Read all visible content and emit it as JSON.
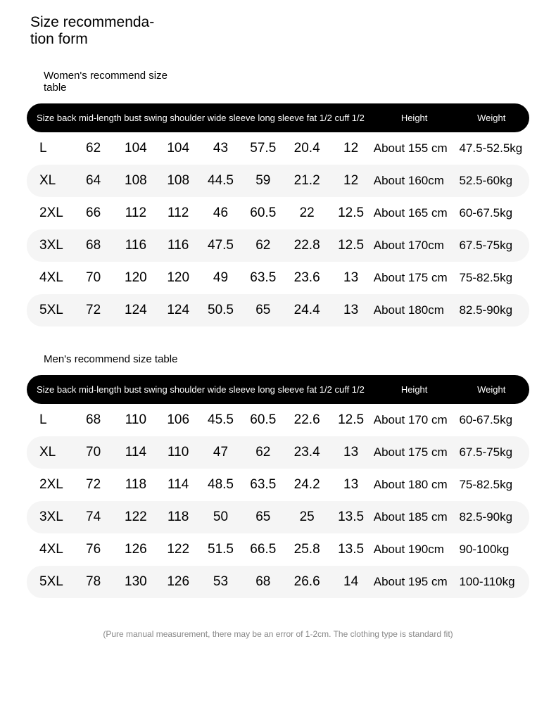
{
  "page_title": "Size recommenda-\ntion form",
  "women_subtitle": "Women's recommend\nsize table",
  "men_subtitle": "Men's recommend size table",
  "footnote": "(Pure manual measurement, there may be an error of 1-2cm. The clothing type is standard fit)",
  "columns_left": "Size back mid-length bust swing shoulder wide sleeve long sleeve fat 1/2 cuff 1/2",
  "col_height": "Height",
  "col_weight": "Weight",
  "colors": {
    "header_bg": "#000000",
    "header_fg": "#ffffff",
    "row_alt_bg": "#f5f5f5",
    "page_bg": "#ffffff",
    "footnote_color": "#888888"
  },
  "typography": {
    "title_fontsize": 21,
    "subtitle_fontsize": 15,
    "header_fontsize": 13,
    "cell_fontsize": 19,
    "rec_fontsize": 17,
    "footnote_fontsize": 12
  },
  "layout": {
    "header_row_radius": 22,
    "data_row_radius": 22
  },
  "women": {
    "rows": [
      {
        "size": "L",
        "back": "62",
        "bust": "104",
        "swing": "104",
        "shoulder": "43",
        "sleeve_long": "57.5",
        "sleeve_fat": "20.4",
        "cuff": "12",
        "height": "About 155 cm",
        "weight": "47.5-52.5kg"
      },
      {
        "size": "XL",
        "back": "64",
        "bust": "108",
        "swing": "108",
        "shoulder": "44.5",
        "sleeve_long": "59",
        "sleeve_fat": "21.2",
        "cuff": "12",
        "height": "About 160cm",
        "weight": " 52.5-60kg"
      },
      {
        "size": "2XL",
        "back": "66",
        "bust": "112",
        "swing": "112",
        "shoulder": "46",
        "sleeve_long": "60.5",
        "sleeve_fat": "22",
        "cuff": "12.5",
        "height": "About 165 cm",
        "weight": "60-67.5kg"
      },
      {
        "size": "3XL",
        "back": "68",
        "bust": "116",
        "swing": "116",
        "shoulder": "47.5",
        "sleeve_long": "62",
        "sleeve_fat": "22.8",
        "cuff": "12.5",
        "height": "About 170cm",
        "weight": " 67.5-75kg"
      },
      {
        "size": "4XL",
        "back": "70",
        "bust": "120",
        "swing": "120",
        "shoulder": "49",
        "sleeve_long": "63.5",
        "sleeve_fat": "23.6",
        "cuff": "13",
        "height": "About 175 cm",
        "weight": "75-82.5kg"
      },
      {
        "size": "5XL",
        "back": "72",
        "bust": "124",
        "swing": "124",
        "shoulder": "50.5",
        "sleeve_long": "65",
        "sleeve_fat": "24.4",
        "cuff": "13",
        "height": "About 180cm",
        "weight": " 82.5-90kg"
      }
    ]
  },
  "men": {
    "rows": [
      {
        "size": "L",
        "back": "68",
        "bust": "110",
        "swing": "106",
        "shoulder": "45.5",
        "sleeve_long": "60.5",
        "sleeve_fat": "22.6",
        "cuff": "12.5",
        "height": "About 170 cm",
        "weight": "60-67.5kg"
      },
      {
        "size": "XL",
        "back": "70",
        "bust": "114",
        "swing": "110",
        "shoulder": "47",
        "sleeve_long": "62",
        "sleeve_fat": "23.4",
        "cuff": "13",
        "height": "About 175 cm",
        "weight": "67.5-75kg"
      },
      {
        "size": "2XL",
        "back": "72",
        "bust": "118",
        "swing": "114",
        "shoulder": "48.5",
        "sleeve_long": "63.5",
        "sleeve_fat": "24.2",
        "cuff": "13",
        "height": "About 180 cm",
        "weight": "75-82.5kg"
      },
      {
        "size": "3XL",
        "back": "74",
        "bust": "122",
        "swing": "118",
        "shoulder": "50",
        "sleeve_long": "65",
        "sleeve_fat": "25",
        "cuff": "13.5",
        "height": "About 185 cm",
        "weight": "82.5-90kg"
      },
      {
        "size": "4XL",
        "back": "76",
        "bust": "126",
        "swing": "122",
        "shoulder": "51.5",
        "sleeve_long": "66.5",
        "sleeve_fat": "25.8",
        "cuff": "13.5",
        "height": "About 190cm",
        "weight": " 90-100kg"
      },
      {
        "size": "5XL",
        "back": "78",
        "bust": "130",
        "swing": "126",
        "shoulder": "53",
        "sleeve_long": "68",
        "sleeve_fat": "26.6",
        "cuff": "14",
        "height": "About 195 cm",
        "weight": "100-110kg"
      }
    ]
  }
}
